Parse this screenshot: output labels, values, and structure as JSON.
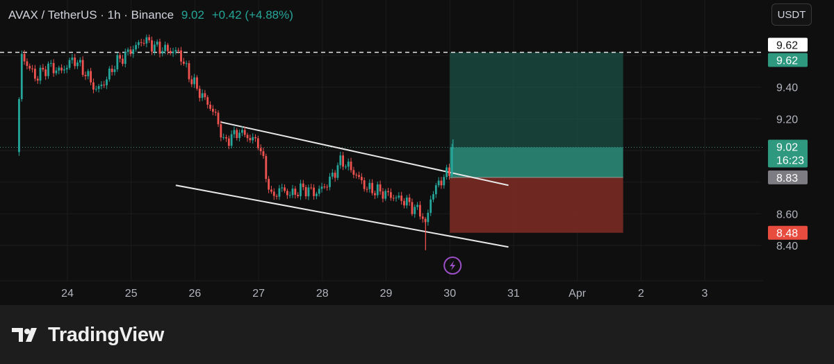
{
  "header": {
    "symbol_line": "AVAX / TetherUS · 1h · Binance",
    "price": "9.02",
    "change": "+0.42 (+4.88%)"
  },
  "currency_button": "USDT",
  "footer": {
    "brand": "TradingView",
    "logo_icon": "tradingview-logo-icon"
  },
  "colors": {
    "up": "#26a69a",
    "down": "#ef5350",
    "target_zone": "#1d5c50",
    "stop_zone": "#7a2a24",
    "price_label": "#2f9980",
    "stop_label": "#e84c3f",
    "entry_label": "#7c7c82"
  },
  "chart_data": {
    "type": "candlestick",
    "x_tick_labels": [
      "24",
      "25",
      "26",
      "27",
      "28",
      "29",
      "30",
      "31",
      "Apr",
      "2",
      "3"
    ],
    "y_tick_labels": [
      "9.40",
      "9.20",
      "8.60",
      "8.40"
    ],
    "ylim": [
      8.34,
      9.78
    ],
    "price_path": [
      [
        23.2,
        8.99
      ],
      [
        23.28,
        9.6
      ],
      [
        23.5,
        9.46
      ],
      [
        23.7,
        9.53
      ],
      [
        23.9,
        9.5
      ],
      [
        24.1,
        9.58
      ],
      [
        24.3,
        9.48
      ],
      [
        24.45,
        9.38
      ],
      [
        24.6,
        9.44
      ],
      [
        24.75,
        9.55
      ],
      [
        24.9,
        9.6
      ],
      [
        25.05,
        9.65
      ],
      [
        25.2,
        9.7
      ],
      [
        25.4,
        9.65
      ],
      [
        25.6,
        9.63
      ],
      [
        25.75,
        9.62
      ],
      [
        25.9,
        9.48
      ],
      [
        26.05,
        9.38
      ],
      [
        26.2,
        9.3
      ],
      [
        26.35,
        9.2
      ],
      [
        26.45,
        9.05
      ],
      [
        26.55,
        9.08
      ],
      [
        26.7,
        9.12
      ],
      [
        26.85,
        9.08
      ],
      [
        27.0,
        9.05
      ],
      [
        27.1,
        8.88
      ],
      [
        27.2,
        8.7
      ],
      [
        27.35,
        8.76
      ],
      [
        27.5,
        8.72
      ],
      [
        27.7,
        8.76
      ],
      [
        27.9,
        8.73
      ],
      [
        28.1,
        8.8
      ],
      [
        28.3,
        8.94
      ],
      [
        28.5,
        8.86
      ],
      [
        28.7,
        8.76
      ],
      [
        28.9,
        8.74
      ],
      [
        29.1,
        8.71
      ],
      [
        29.3,
        8.68
      ],
      [
        29.45,
        8.63
      ],
      [
        29.55,
        8.61
      ],
      [
        29.62,
        8.52
      ],
      [
        29.7,
        8.7
      ],
      [
        29.8,
        8.78
      ],
      [
        29.9,
        8.83
      ],
      [
        30.0,
        8.87
      ],
      [
        30.05,
        9.02
      ]
    ],
    "annotations": {
      "upper_trendline": [
        [
          26.4,
          9.18
        ],
        [
          30.92,
          8.78
        ]
      ],
      "lower_trendline": [
        [
          25.7,
          8.78
        ],
        [
          30.92,
          8.39
        ]
      ],
      "dashed_level": 9.62,
      "current_price": 9.02,
      "position": {
        "x_start": 30.0,
        "x_end": 32.72,
        "target": 9.62,
        "entry": 8.83,
        "stop": 8.48
      },
      "event_marker_x": 30.0
    },
    "price_labels": [
      {
        "value": 9.62,
        "text": "9.62",
        "style": "white"
      },
      {
        "value": 9.62,
        "text": "9.62",
        "style": "green"
      },
      {
        "value": 9.02,
        "text": "9.02",
        "sub": "16:23",
        "style": "green"
      },
      {
        "value": 8.83,
        "text": "8.83",
        "style": "gray"
      },
      {
        "value": 8.48,
        "text": "8.48",
        "style": "red"
      }
    ]
  }
}
